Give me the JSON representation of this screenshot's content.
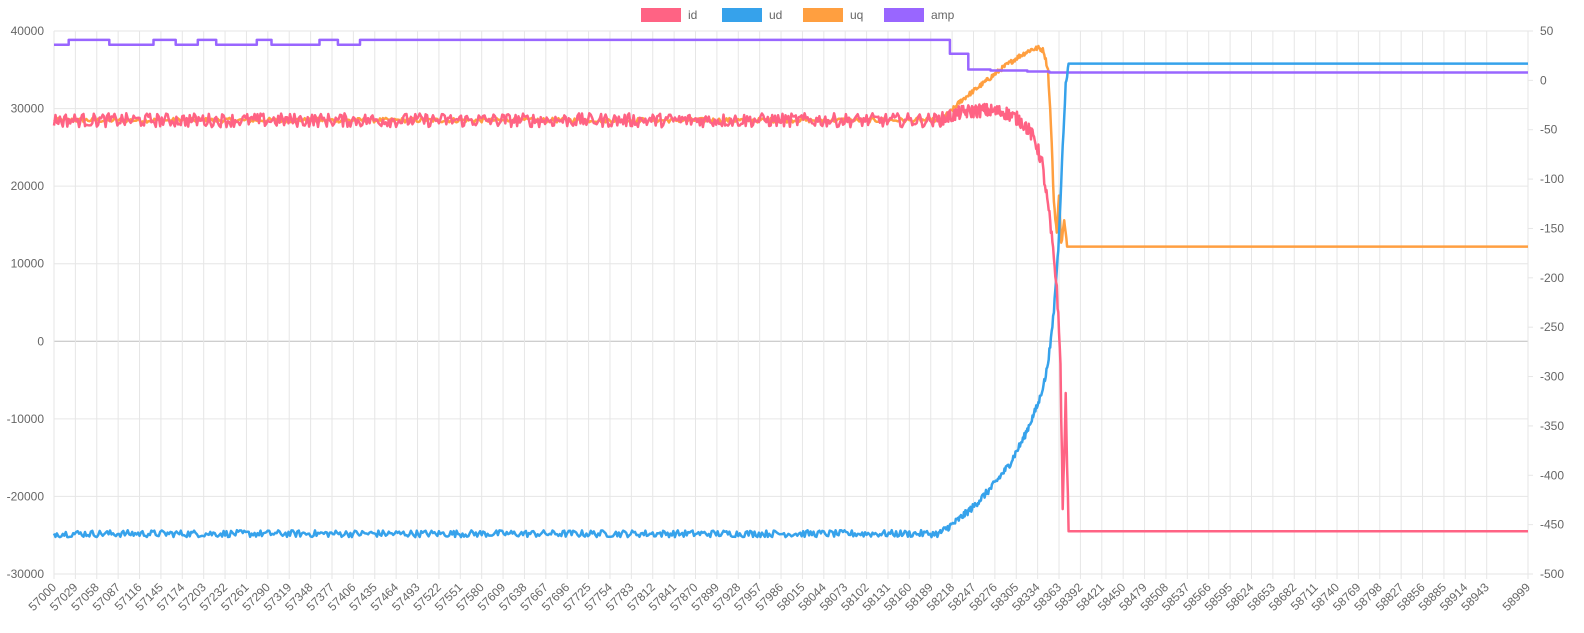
{
  "chart_data": {
    "type": "line",
    "legend": {
      "position": "top",
      "items": [
        {
          "label": "id",
          "color": "#ff6384"
        },
        {
          "label": "ud",
          "color": "#36a2eb"
        },
        {
          "label": "uq",
          "color": "#ff9f40"
        },
        {
          "label": "amp",
          "color": "#9966ff"
        }
      ]
    },
    "grid": true,
    "x_axis": {
      "min": 57000,
      "max": 58999,
      "tick_labels": [
        "57000",
        "57029",
        "57058",
        "57087",
        "57116",
        "57145",
        "57174",
        "57203",
        "57232",
        "57261",
        "57290",
        "57319",
        "57348",
        "57377",
        "57406",
        "57435",
        "57464",
        "57493",
        "57522",
        "57551",
        "57580",
        "57609",
        "57638",
        "57667",
        "57696",
        "57725",
        "57754",
        "57783",
        "57812",
        "57841",
        "57870",
        "57899",
        "57928",
        "57957",
        "57986",
        "58015",
        "58044",
        "58073",
        "58102",
        "58131",
        "58160",
        "58189",
        "58218",
        "58247",
        "58276",
        "58305",
        "58334",
        "58363",
        "58392",
        "58421",
        "58450",
        "58479",
        "58508",
        "58537",
        "58566",
        "58595",
        "58624",
        "58653",
        "58682",
        "58711",
        "58740",
        "58769",
        "58798",
        "58827",
        "58856",
        "58885",
        "58914",
        "58943",
        "58999"
      ]
    },
    "y_left": {
      "min": -30000,
      "max": 40000,
      "tick_labels": [
        "40000",
        "30000",
        "20000",
        "10000",
        "0",
        "-10000",
        "-20000",
        "-30000"
      ]
    },
    "y_right": {
      "min": -500,
      "max": 50,
      "tick_labels": [
        "50",
        "0",
        "-50",
        "-100",
        "-150",
        "-200",
        "-250",
        "-300",
        "-350",
        "-400",
        "-450",
        "-500"
      ]
    },
    "series": [
      {
        "name": "id",
        "axis": "left",
        "color": "#ff6384",
        "noise": 900,
        "points": [
          [
            57000,
            28500
          ],
          [
            58200,
            28500
          ],
          [
            58230,
            29500
          ],
          [
            58260,
            29800
          ],
          [
            58290,
            29500
          ],
          [
            58310,
            28500
          ],
          [
            58320,
            27500
          ],
          [
            58330,
            26000
          ],
          [
            58340,
            23000
          ],
          [
            58350,
            16000
          ],
          [
            58360,
            7000
          ],
          [
            58365,
            -3000
          ],
          [
            58368,
            -21500
          ],
          [
            58372,
            -7500
          ],
          [
            58376,
            -24500
          ],
          [
            58999,
            -24500
          ]
        ]
      },
      {
        "name": "ud",
        "axis": "left",
        "color": "#36a2eb",
        "noise": 450,
        "points": [
          [
            57000,
            -24800
          ],
          [
            58200,
            -24800
          ],
          [
            58220,
            -23500
          ],
          [
            58245,
            -21500
          ],
          [
            58270,
            -19000
          ],
          [
            58295,
            -16000
          ],
          [
            58315,
            -12500
          ],
          [
            58335,
            -8000
          ],
          [
            58345,
            -4500
          ],
          [
            58352,
            0
          ],
          [
            58356,
            4000
          ],
          [
            58362,
            12000
          ],
          [
            58368,
            25000
          ],
          [
            58372,
            33000
          ],
          [
            58376,
            35800
          ],
          [
            58999,
            35800
          ]
        ]
      },
      {
        "name": "uq",
        "axis": "left",
        "color": "#ff9f40",
        "noise": 300,
        "points": [
          [
            57000,
            28500
          ],
          [
            58200,
            28500
          ],
          [
            58215,
            29500
          ],
          [
            58230,
            31000
          ],
          [
            58250,
            32500
          ],
          [
            58270,
            34000
          ],
          [
            58290,
            35500
          ],
          [
            58310,
            36800
          ],
          [
            58325,
            37600
          ],
          [
            58335,
            37800
          ],
          [
            58342,
            37500
          ],
          [
            58348,
            35000
          ],
          [
            58352,
            28000
          ],
          [
            58356,
            18000
          ],
          [
            58360,
            14000
          ],
          [
            58363,
            19000
          ],
          [
            58366,
            12500
          ],
          [
            58370,
            15500
          ],
          [
            58374,
            12200
          ],
          [
            58999,
            12200
          ]
        ]
      },
      {
        "name": "amp",
        "axis": "right",
        "color": "#9966ff",
        "noise": 0,
        "points": [
          [
            57000,
            36
          ],
          [
            57020,
            36
          ],
          [
            57020,
            41
          ],
          [
            57075,
            41
          ],
          [
            57075,
            36
          ],
          [
            57135,
            36
          ],
          [
            57135,
            41
          ],
          [
            57165,
            41
          ],
          [
            57165,
            36
          ],
          [
            57195,
            36
          ],
          [
            57195,
            41
          ],
          [
            57220,
            41
          ],
          [
            57220,
            36
          ],
          [
            57275,
            36
          ],
          [
            57275,
            41
          ],
          [
            57295,
            41
          ],
          [
            57295,
            36
          ],
          [
            57360,
            36
          ],
          [
            57360,
            41
          ],
          [
            57385,
            41
          ],
          [
            57385,
            36
          ],
          [
            57415,
            36
          ],
          [
            57415,
            41
          ],
          [
            58215,
            41
          ],
          [
            58215,
            27
          ],
          [
            58240,
            27
          ],
          [
            58240,
            11
          ],
          [
            58270,
            11
          ],
          [
            58270,
            10
          ],
          [
            58320,
            10
          ],
          [
            58320,
            9
          ],
          [
            58350,
            9
          ],
          [
            58350,
            8
          ],
          [
            58999,
            8
          ]
        ]
      }
    ]
  }
}
